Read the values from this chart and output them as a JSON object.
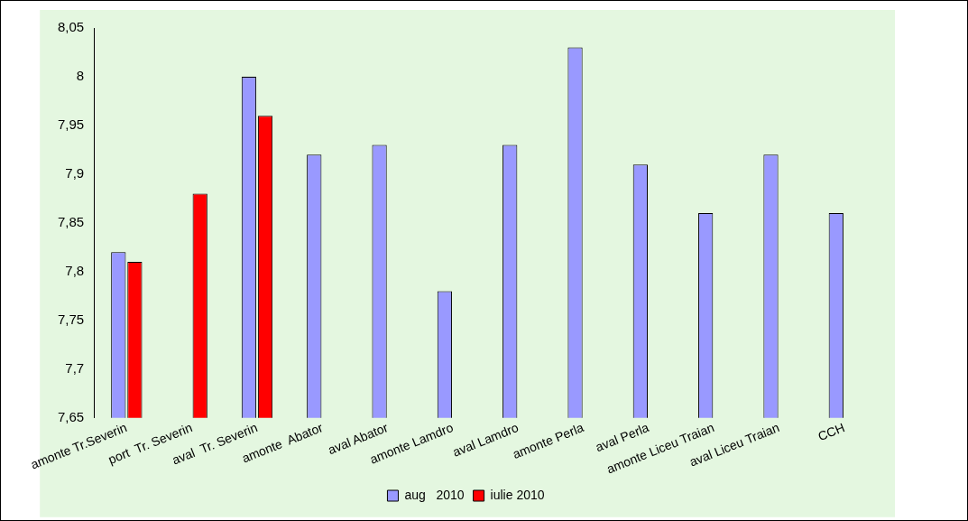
{
  "chart_data": {
    "type": "bar",
    "categories": [
      "amonte Tr.Severin",
      "port  Tr. Severin",
      "aval  Tr. Severin",
      "amonte  Abator",
      "aval Abator",
      "amonte Lamdro",
      "aval Lamdro",
      "amonte Perla",
      "aval Perla",
      "amonte Liceu Traian",
      "aval Liceu Traian",
      "CCH"
    ],
    "series": [
      {
        "name": "aug   2010",
        "color": "#9999ff",
        "values": [
          7.82,
          null,
          8.0,
          7.92,
          7.93,
          7.78,
          7.93,
          8.03,
          7.91,
          7.86,
          7.92,
          7.86
        ]
      },
      {
        "name": "iulie 2010",
        "color": "#ff0000",
        "values": [
          7.81,
          7.88,
          7.96,
          null,
          null,
          null,
          null,
          null,
          null,
          null,
          null,
          null
        ]
      }
    ],
    "ylim": [
      7.65,
      8.05
    ],
    "yticks": [
      {
        "value": 7.65,
        "label": "7,65"
      },
      {
        "value": 7.7,
        "label": "7,7"
      },
      {
        "value": 7.75,
        "label": "7,75"
      },
      {
        "value": 7.8,
        "label": "7,8"
      },
      {
        "value": 7.85,
        "label": "7,85"
      },
      {
        "value": 7.9,
        "label": "7,9"
      },
      {
        "value": 7.95,
        "label": "7,95"
      },
      {
        "value": 8,
        "label": "8"
      },
      {
        "value": 8.05,
        "label": "8,05"
      }
    ],
    "grid": false,
    "legend": "bottom"
  }
}
